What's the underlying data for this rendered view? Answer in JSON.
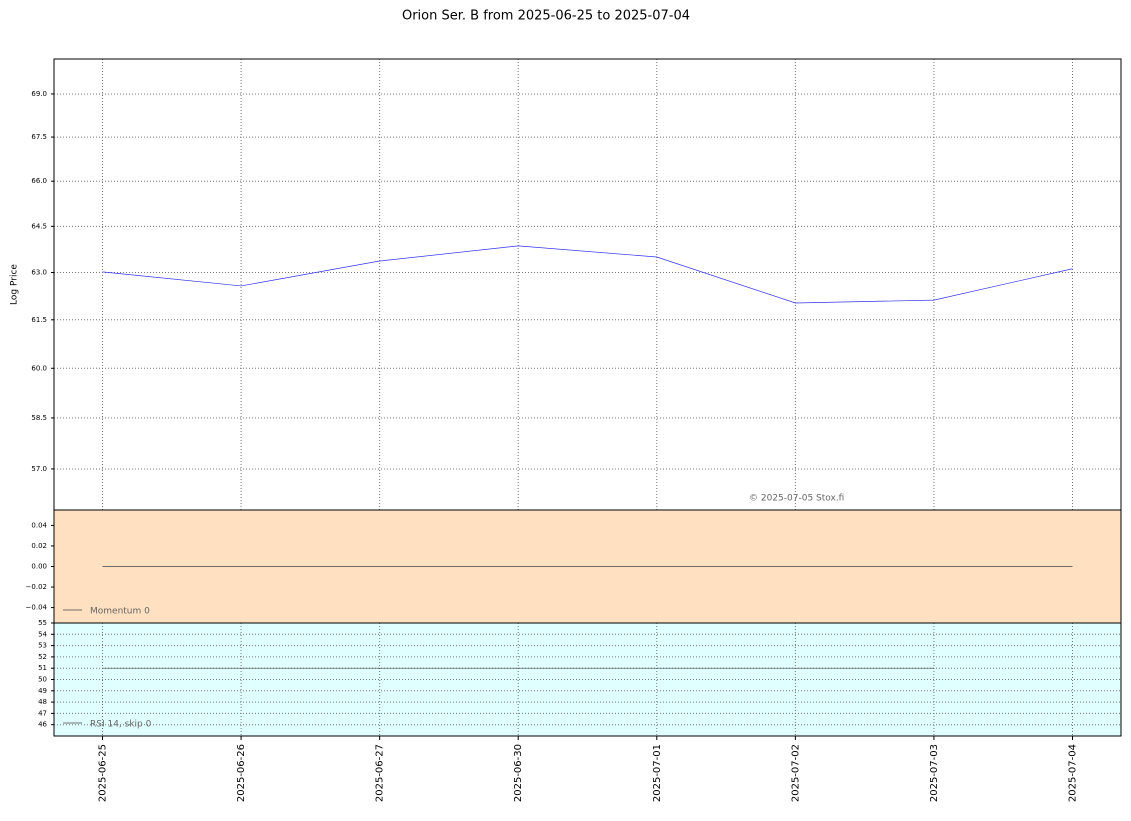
{
  "title": "Orion Ser. B from 2025-06-25 to 2025-07-04",
  "watermark": "© 2025-07-05 Stox.fi",
  "chart_data": [
    {
      "type": "line",
      "ylabel": "Log Price",
      "log": true,
      "grid": true,
      "background": "#ffffff",
      "categories": [
        "2025-06-25",
        "2025-06-26",
        "2025-06-27",
        "2025-06-30",
        "2025-07-01",
        "2025-07-02",
        "2025-07-03",
        "2025-07-04"
      ],
      "series": [
        {
          "color": "#3333ee",
          "values": [
            63.02,
            62.57,
            63.37,
            63.86,
            63.5,
            62.03,
            62.12,
            63.12
          ]
        }
      ],
      "ylim": [
        55.82,
        70.24
      ],
      "yticks": [
        {
          "value": 57,
          "label": "57.0"
        },
        {
          "value": 58.5,
          "label": "58.5"
        },
        {
          "value": 60,
          "label": "60.0"
        },
        {
          "value": 61.5,
          "label": "61.5"
        },
        {
          "value": 63,
          "label": "63.0"
        },
        {
          "value": 64.5,
          "label": "64.5"
        },
        {
          "value": 66,
          "label": "66.0"
        },
        {
          "value": 67.5,
          "label": "67.5"
        },
        {
          "value": 69,
          "label": "69.0"
        }
      ]
    },
    {
      "type": "line",
      "log": false,
      "grid": false,
      "background": "#ffe0c0",
      "legend": "lower left",
      "series": [
        {
          "name": "Momentum 0",
          "color": "#444444",
          "values": [
            0,
            0,
            0,
            0,
            0,
            0,
            0,
            0
          ]
        }
      ],
      "ylim": [
        -0.055,
        0.055
      ],
      "yticks": [
        {
          "value": -0.04,
          "label": "−0.04"
        },
        {
          "value": -0.02,
          "label": "−0.02"
        },
        {
          "value": 0,
          "label": "0.00"
        },
        0.02,
        0.04
      ]
    },
    {
      "type": "line",
      "log": false,
      "grid": true,
      "background": "#e0ffff",
      "legend": "lower left",
      "series": [
        {
          "name": "RSI 14, skip 0",
          "color": "#444444",
          "values": [
            51,
            51,
            51,
            51,
            51,
            51,
            51,
            null
          ]
        }
      ],
      "ylim": [
        45,
        55
      ],
      "yticks": [
        46,
        47,
        48,
        49,
        50,
        51,
        52,
        53,
        54,
        55
      ]
    }
  ]
}
